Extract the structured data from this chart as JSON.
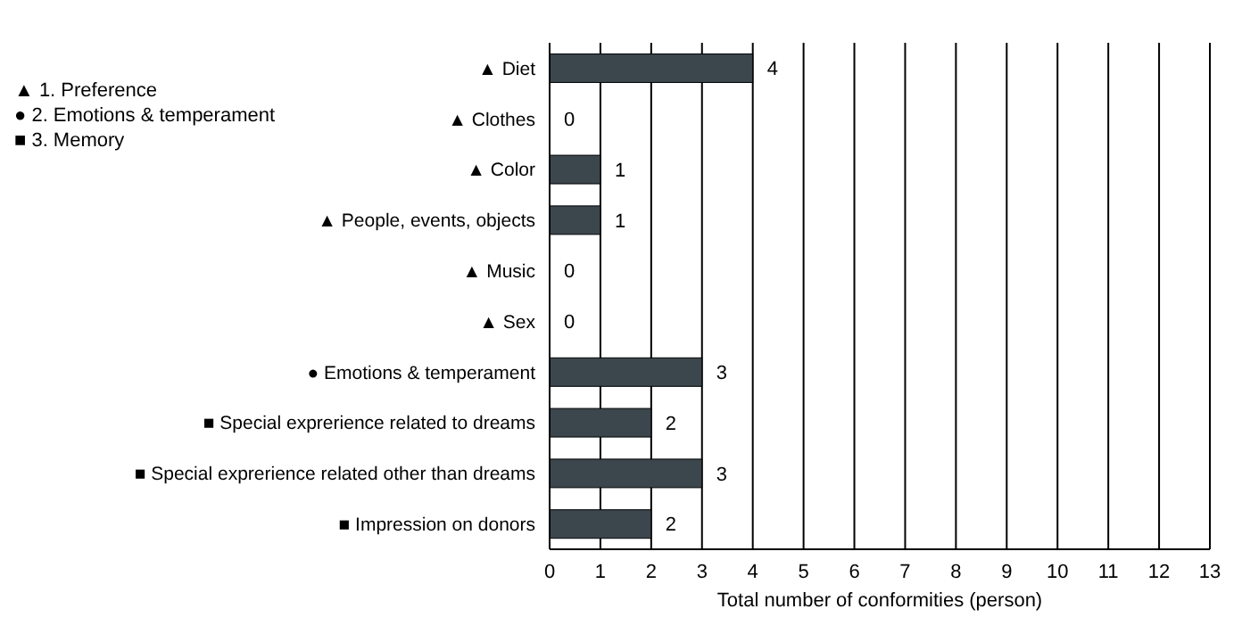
{
  "chart_data": {
    "type": "bar",
    "orientation": "horizontal",
    "xlabel": "Total number of conformities (person)",
    "categories": [
      "▲ Diet",
      "▲ Clothes",
      "▲ Color",
      "▲ People, events, objects",
      "▲ Music",
      "▲ Sex",
      "● Emotions & temperament",
      "■ Special exprerience related to dreams",
      "■ Special exprerience related other than dreams",
      "■ Impression on donors"
    ],
    "values": [
      4,
      0,
      1,
      1,
      0,
      0,
      3,
      2,
      3,
      2
    ],
    "color": "#3c464d",
    "xlim": [
      0,
      13
    ],
    "xticks": [
      0,
      1,
      2,
      3,
      4,
      5,
      6,
      7,
      8,
      9,
      10,
      11,
      12,
      13
    ],
    "grid": "x",
    "data_labels": true,
    "annotations": [
      "▲ 1. Preference",
      "● 2. Emotions & temperament",
      "■ 3. Memory"
    ]
  }
}
